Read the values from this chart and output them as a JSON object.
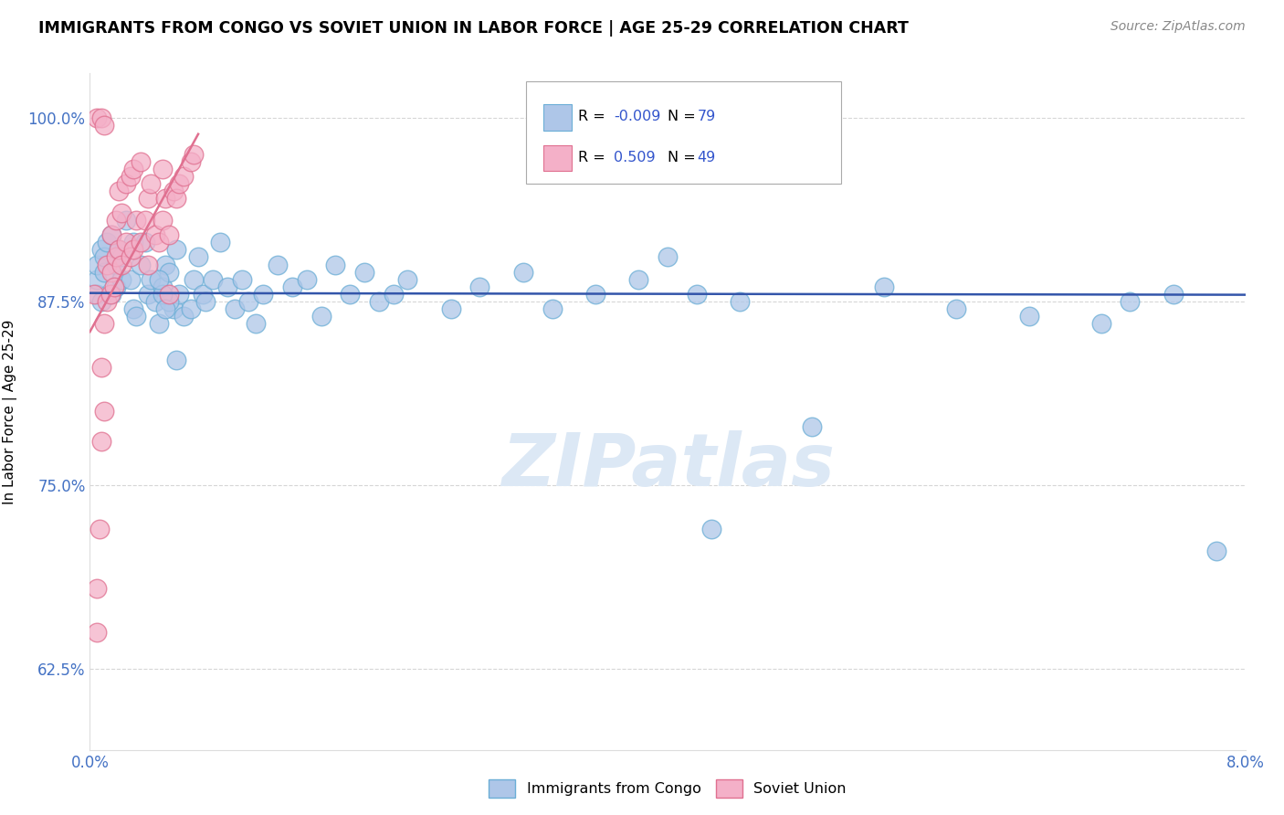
{
  "title": "IMMIGRANTS FROM CONGO VS SOVIET UNION IN LABOR FORCE | AGE 25-29 CORRELATION CHART",
  "source": "Source: ZipAtlas.com",
  "ylabel": "In Labor Force | Age 25-29",
  "xlim": [
    0.0,
    8.0
  ],
  "ylim": [
    57.0,
    103.0
  ],
  "yticks": [
    62.5,
    75.0,
    87.5,
    100.0
  ],
  "ytick_labels": [
    "62.5%",
    "75.0%",
    "87.5%",
    "100.0%"
  ],
  "xtick_labels": [
    "0.0%",
    "",
    "",
    "",
    "8.0%"
  ],
  "congo_color": "#aec6e8",
  "soviet_color": "#f4b0c8",
  "congo_edge": "#6baed6",
  "soviet_edge": "#e07090",
  "trend_congo_color": "#3355aa",
  "trend_soviet_color": "#e07090",
  "watermark": "ZIPatlas",
  "watermark_color": "#dce8f5",
  "background_color": "#ffffff",
  "grid_color": "#cccccc",
  "congo_R": "-0.009",
  "congo_N": "79",
  "soviet_R": "0.509",
  "soviet_N": "49",
  "legend1_label": "Immigrants from Congo",
  "legend2_label": "Soviet Union",
  "congo_x": [
    0.05,
    0.05,
    0.05,
    0.08,
    0.08,
    0.1,
    0.1,
    0.12,
    0.15,
    0.15,
    0.18,
    0.18,
    0.2,
    0.22,
    0.22,
    0.25,
    0.28,
    0.3,
    0.3,
    0.32,
    0.35,
    0.38,
    0.4,
    0.42,
    0.45,
    0.48,
    0.5,
    0.52,
    0.55,
    0.58,
    0.6,
    0.62,
    0.65,
    0.7,
    0.72,
    0.75,
    0.78,
    0.8,
    0.85,
    0.9,
    0.95,
    1.0,
    1.05,
    1.1,
    1.15,
    1.2,
    1.3,
    1.4,
    1.5,
    1.6,
    1.7,
    1.8,
    1.9,
    2.0,
    2.1,
    2.2,
    2.5,
    2.7,
    3.0,
    3.2,
    3.5,
    3.8,
    4.0,
    4.2,
    4.5,
    5.0,
    5.5,
    6.0,
    6.5,
    7.0,
    7.2,
    7.5,
    7.8,
    4.3,
    0.6,
    0.55,
    0.5,
    0.48,
    0.52
  ],
  "congo_y": [
    88.0,
    89.0,
    90.0,
    87.5,
    91.0,
    89.5,
    90.5,
    91.5,
    88.0,
    92.0,
    90.0,
    88.5,
    91.0,
    89.0,
    90.5,
    93.0,
    89.0,
    87.0,
    91.5,
    86.5,
    90.0,
    91.5,
    88.0,
    89.0,
    87.5,
    86.0,
    88.5,
    90.0,
    89.5,
    87.0,
    91.0,
    88.0,
    86.5,
    87.0,
    89.0,
    90.5,
    88.0,
    87.5,
    89.0,
    91.5,
    88.5,
    87.0,
    89.0,
    87.5,
    86.0,
    88.0,
    90.0,
    88.5,
    89.0,
    86.5,
    90.0,
    88.0,
    89.5,
    87.5,
    88.0,
    89.0,
    87.0,
    88.5,
    89.5,
    87.0,
    88.0,
    89.0,
    90.5,
    88.0,
    87.5,
    79.0,
    88.5,
    87.0,
    86.5,
    86.0,
    87.5,
    88.0,
    70.5,
    72.0,
    83.5,
    87.5,
    88.0,
    89.0,
    87.0
  ],
  "soviet_x": [
    0.03,
    0.05,
    0.05,
    0.07,
    0.08,
    0.08,
    0.1,
    0.1,
    0.12,
    0.12,
    0.14,
    0.15,
    0.15,
    0.17,
    0.18,
    0.18,
    0.2,
    0.2,
    0.22,
    0.22,
    0.25,
    0.25,
    0.28,
    0.28,
    0.3,
    0.3,
    0.32,
    0.35,
    0.35,
    0.38,
    0.4,
    0.4,
    0.42,
    0.45,
    0.48,
    0.5,
    0.5,
    0.52,
    0.55,
    0.58,
    0.6,
    0.62,
    0.65,
    0.7,
    0.72,
    0.05,
    0.08,
    0.1,
    0.55
  ],
  "soviet_y": [
    88.0,
    68.0,
    65.0,
    72.0,
    78.0,
    83.0,
    80.0,
    86.0,
    87.5,
    90.0,
    88.0,
    89.5,
    92.0,
    88.5,
    90.5,
    93.0,
    91.0,
    95.0,
    90.0,
    93.5,
    91.5,
    95.5,
    90.5,
    96.0,
    91.0,
    96.5,
    93.0,
    91.5,
    97.0,
    93.0,
    90.0,
    94.5,
    95.5,
    92.0,
    91.5,
    93.0,
    96.5,
    94.5,
    92.0,
    95.0,
    94.5,
    95.5,
    96.0,
    97.0,
    97.5,
    100.0,
    100.0,
    99.5,
    88.0
  ]
}
